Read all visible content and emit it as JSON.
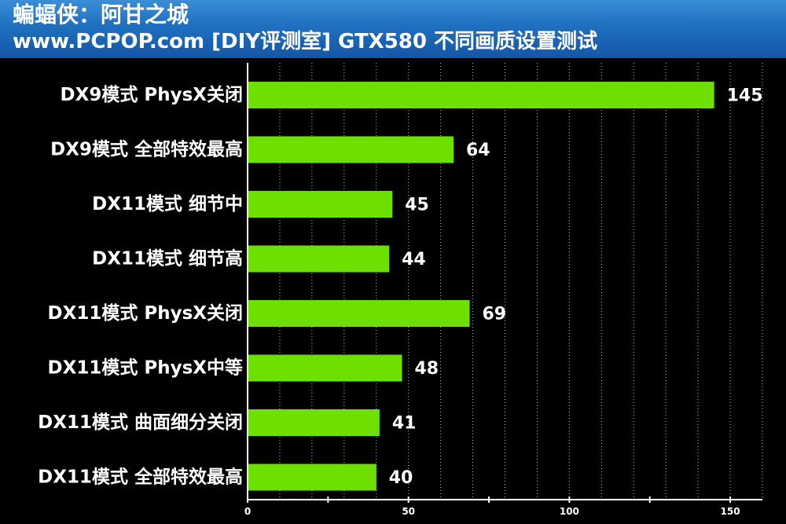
{
  "header": {
    "title": "蝙蝠侠：阿甘之城",
    "subtitle": "www.PCPOP.com [DIY评测室] GTX580 不同画质设置测试"
  },
  "colors": {
    "bar": "#6ee000",
    "header_top": "#3a8ed6",
    "header_bottom": "#1656a6",
    "background": "#000000"
  },
  "chart_data": {
    "type": "bar",
    "orientation": "horizontal",
    "title": "",
    "xlabel": "",
    "ylabel": "",
    "categories": [
      "DX9模式 PhysX关闭",
      "DX9模式 全部特效最高",
      "DX11模式 细节中",
      "DX11模式 细节高",
      "DX11模式 PhysX关闭",
      "DX11模式 PhysX中等",
      "DX11模式 曲面细分关闭",
      "DX11模式 全部特效最高"
    ],
    "values": [
      145,
      64,
      45,
      44,
      69,
      48,
      41,
      40
    ],
    "xlim": [
      0,
      160
    ],
    "xticks": [
      0,
      50,
      100,
      150
    ],
    "grid": true,
    "legend": "none"
  }
}
